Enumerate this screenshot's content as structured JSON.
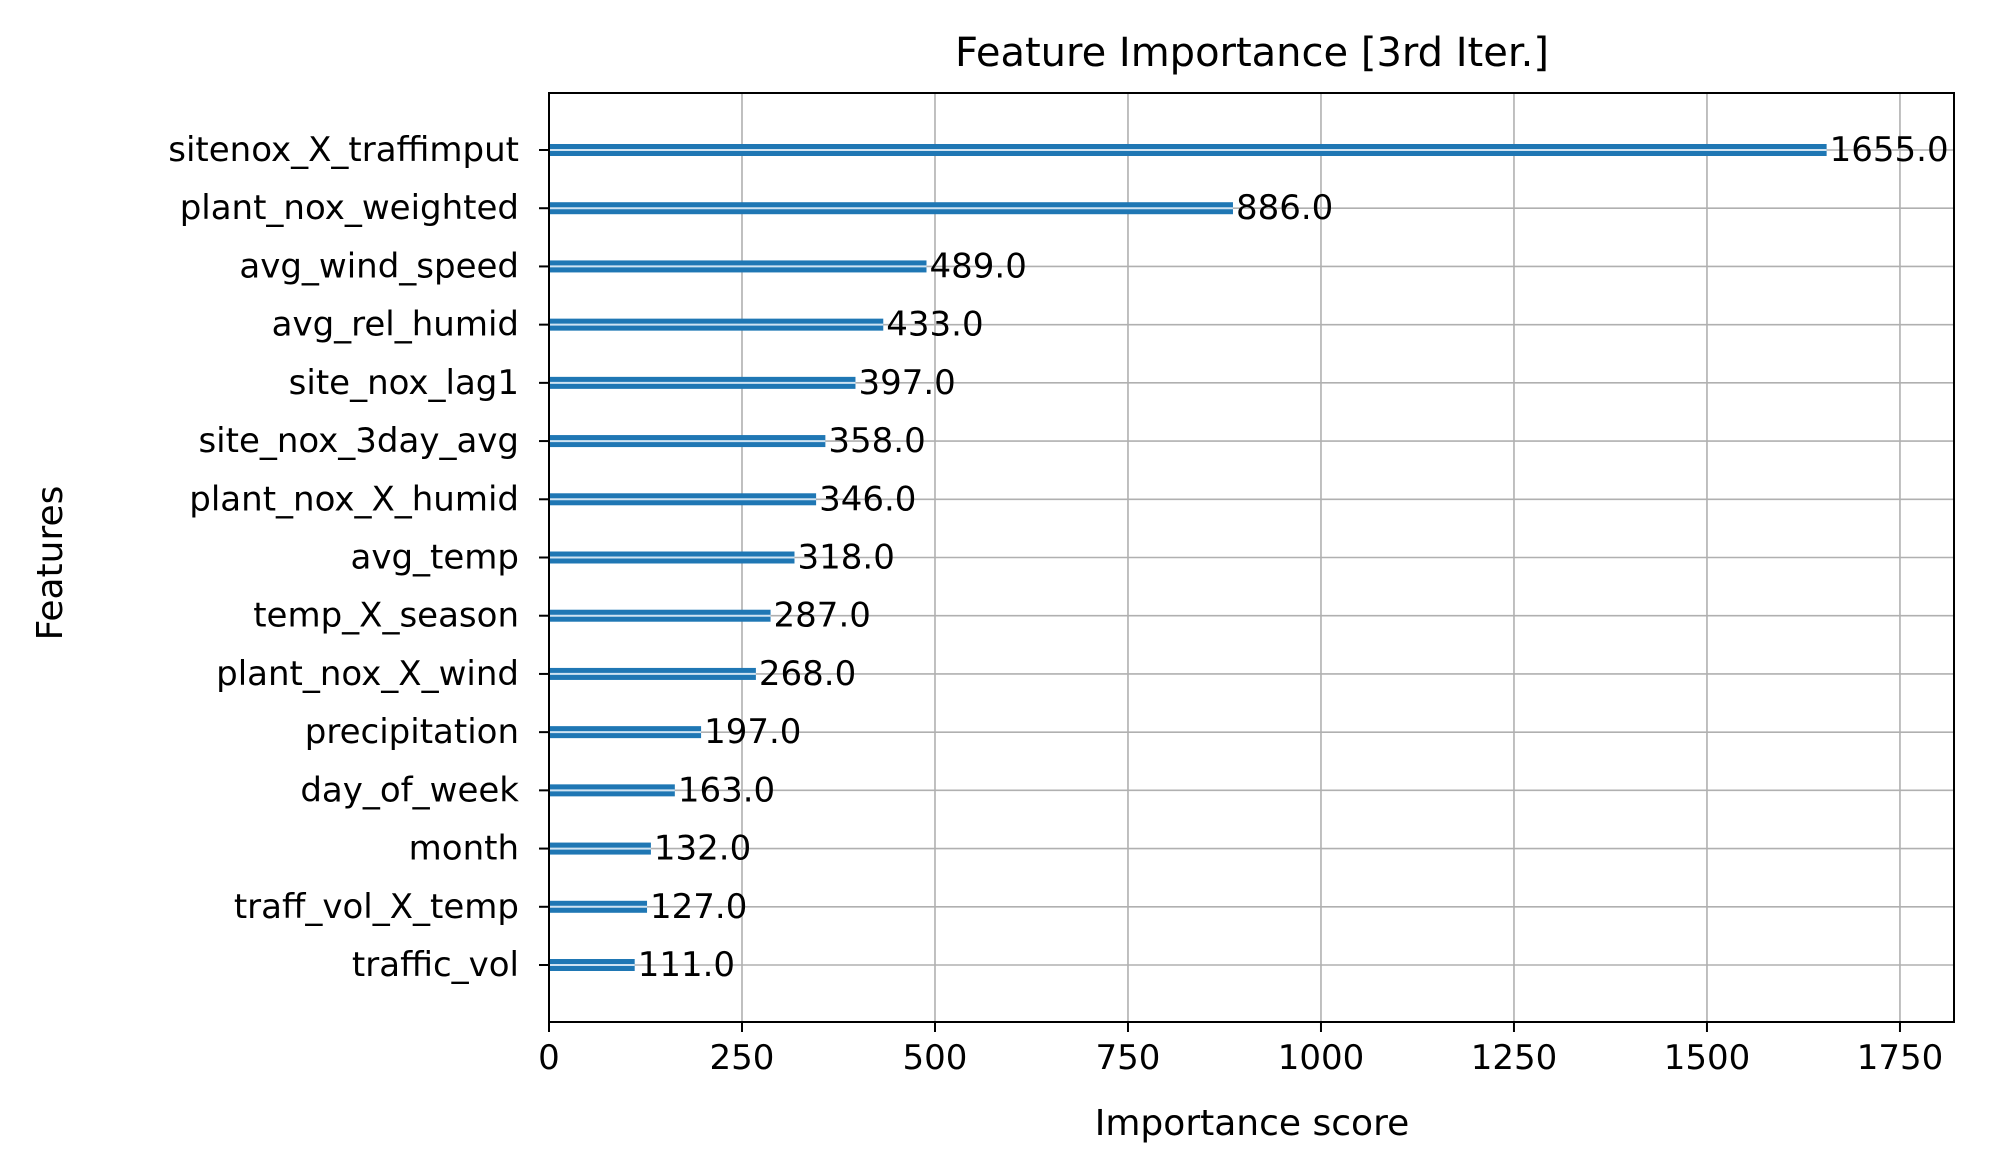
{
  "chart_data": {
    "type": "bar",
    "orientation": "horizontal",
    "title": "Feature Importance [3rd Iter.]",
    "xlabel": "Importance score",
    "ylabel": "Features",
    "xlim": [
      0,
      1820
    ],
    "xticks": [
      0,
      250,
      500,
      750,
      1000,
      1250,
      1500,
      1750
    ],
    "grid": true,
    "bar_color": "#1f77b4",
    "categories": [
      "sitenox_X_traffimput",
      "plant_nox_weighted",
      "avg_wind_speed",
      "avg_rel_humid",
      "site_nox_lag1",
      "site_nox_3day_avg",
      "plant_nox_X_humid",
      "avg_temp",
      "temp_X_season",
      "plant_nox_X_wind",
      "precipitation",
      "day_of_week",
      "month",
      "traff_vol_X_temp",
      "traffic_vol"
    ],
    "values": [
      1655.0,
      886.0,
      489.0,
      433.0,
      397.0,
      358.0,
      346.0,
      318.0,
      287.0,
      268.0,
      197.0,
      163.0,
      132.0,
      127.0,
      111.0
    ],
    "value_labels": [
      "1655.0",
      "886.0",
      "489.0",
      "433.0",
      "397.0",
      "358.0",
      "346.0",
      "318.0",
      "287.0",
      "268.0",
      "197.0",
      "163.0",
      "132.0",
      "127.0",
      "111.0"
    ]
  }
}
